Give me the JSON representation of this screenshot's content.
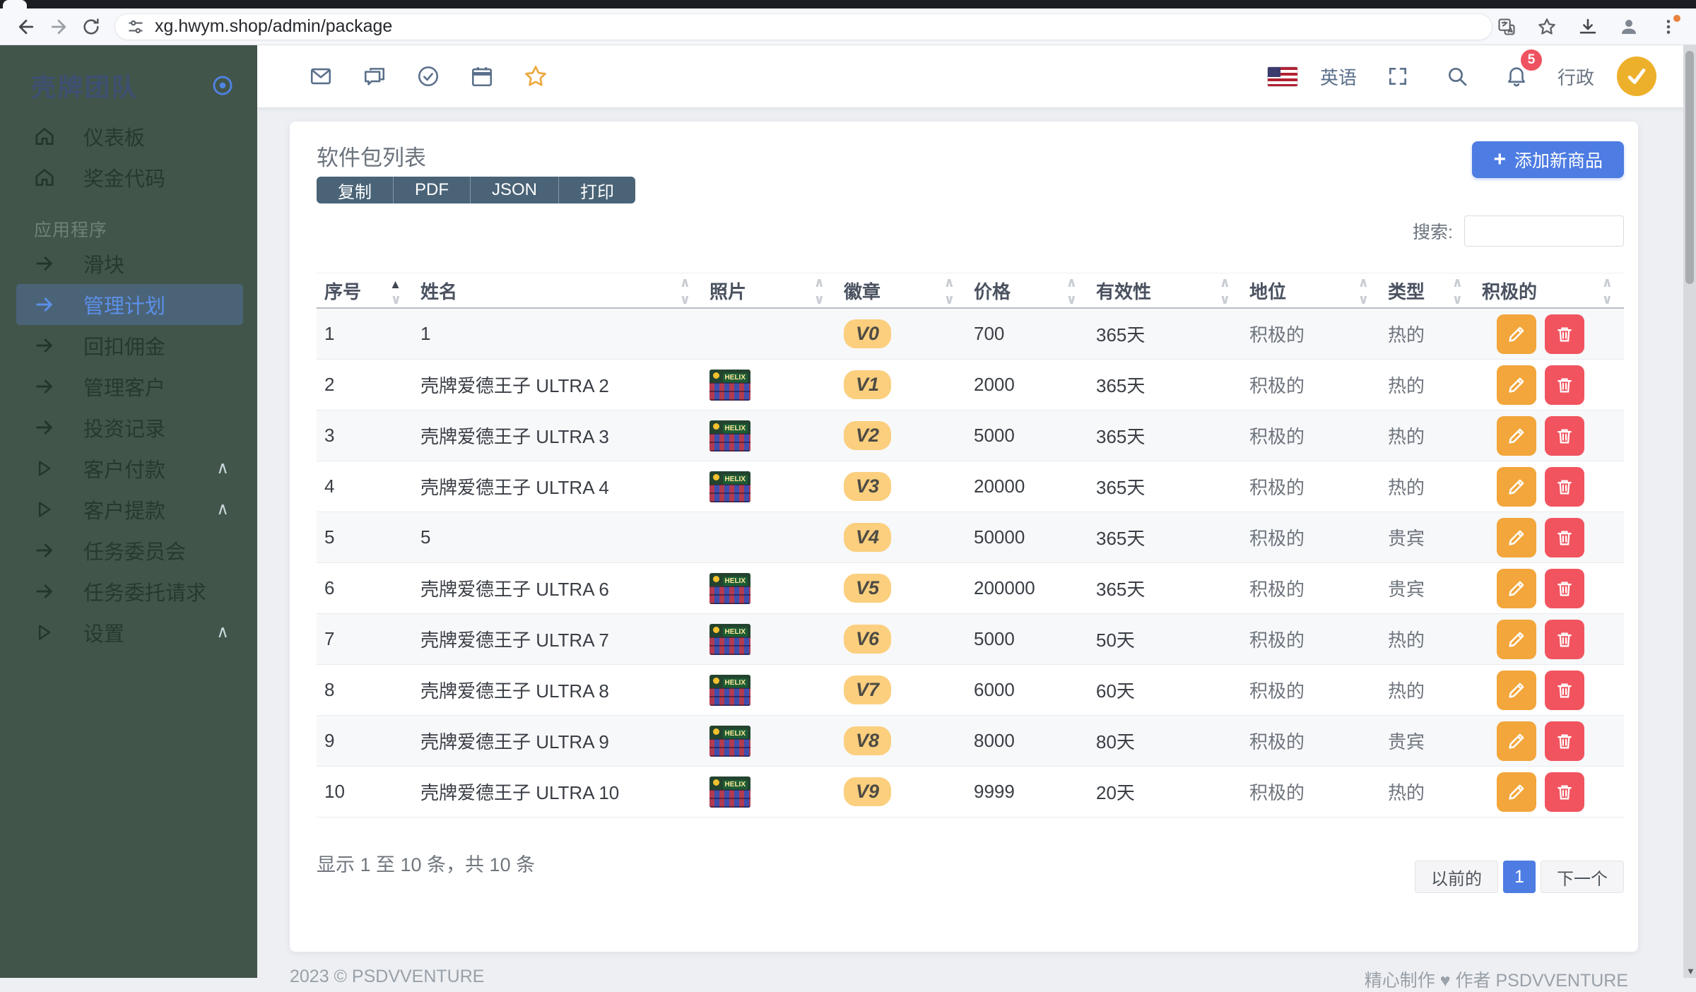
{
  "browser": {
    "url": "xg.hwym.shop/admin/package"
  },
  "sidebar": {
    "brand": "壳牌团队",
    "section_label": "应用程序",
    "items": [
      {
        "label": "仪表板",
        "icon": "home",
        "active": false,
        "chevron": false
      },
      {
        "label": "奖金代码",
        "icon": "home",
        "active": false,
        "chevron": false
      },
      {
        "label": "滑块",
        "icon": "arrow",
        "active": false,
        "chevron": false
      },
      {
        "label": "管理计划",
        "icon": "arrow",
        "active": true,
        "chevron": false
      },
      {
        "label": "回扣佣金",
        "icon": "arrow",
        "active": false,
        "chevron": false
      },
      {
        "label": "管理客户",
        "icon": "arrow",
        "active": false,
        "chevron": false
      },
      {
        "label": "投资记录",
        "icon": "arrow",
        "active": false,
        "chevron": false
      },
      {
        "label": "客户付款",
        "icon": "triangle",
        "active": false,
        "chevron": true
      },
      {
        "label": "客户提款",
        "icon": "triangle",
        "active": false,
        "chevron": true
      },
      {
        "label": "任务委员会",
        "icon": "arrow",
        "active": false,
        "chevron": false
      },
      {
        "label": "任务委托请求",
        "icon": "arrow",
        "active": false,
        "chevron": false
      },
      {
        "label": "设置",
        "icon": "triangle",
        "active": false,
        "chevron": true
      }
    ]
  },
  "topbar": {
    "language": "英语",
    "notification_count": "5",
    "user_role": "行政"
  },
  "page": {
    "title": "软件包列表",
    "export_buttons": [
      "复制",
      "PDF",
      "JSON",
      "打印"
    ],
    "add_button_icon": "+",
    "add_button_label": "添加新商品",
    "search_label": "搜索:",
    "search_value": "",
    "table": {
      "columns": [
        "序号",
        "姓名",
        "照片",
        "徽章",
        "价格",
        "有效性",
        "地位",
        "类型",
        "积极的"
      ],
      "photo_label": "HELIX",
      "rows": [
        {
          "no": "1",
          "name": "1",
          "photo": false,
          "badge": "V0",
          "price": "700",
          "validity": "365天",
          "status": "积极的",
          "type": "热的"
        },
        {
          "no": "2",
          "name": "壳牌爱德王子 ULTRA 2",
          "photo": true,
          "badge": "V1",
          "price": "2000",
          "validity": "365天",
          "status": "积极的",
          "type": "热的"
        },
        {
          "no": "3",
          "name": "壳牌爱德王子 ULTRA 3",
          "photo": true,
          "badge": "V2",
          "price": "5000",
          "validity": "365天",
          "status": "积极的",
          "type": "热的"
        },
        {
          "no": "4",
          "name": "壳牌爱德王子 ULTRA 4",
          "photo": true,
          "badge": "V3",
          "price": "20000",
          "validity": "365天",
          "status": "积极的",
          "type": "热的"
        },
        {
          "no": "5",
          "name": "5",
          "photo": false,
          "badge": "V4",
          "price": "50000",
          "validity": "365天",
          "status": "积极的",
          "type": "贵宾"
        },
        {
          "no": "6",
          "name": "壳牌爱德王子 ULTRA 6",
          "photo": true,
          "badge": "V5",
          "price": "200000",
          "validity": "365天",
          "status": "积极的",
          "type": "贵宾"
        },
        {
          "no": "7",
          "name": "壳牌爱德王子 ULTRA 7",
          "photo": true,
          "badge": "V6",
          "price": "5000",
          "validity": "50天",
          "status": "积极的",
          "type": "热的"
        },
        {
          "no": "8",
          "name": "壳牌爱德王子 ULTRA 8",
          "photo": true,
          "badge": "V7",
          "price": "6000",
          "validity": "60天",
          "status": "积极的",
          "type": "热的"
        },
        {
          "no": "9",
          "name": "壳牌爱德王子 ULTRA 9",
          "photo": true,
          "badge": "V8",
          "price": "8000",
          "validity": "80天",
          "status": "积极的",
          "type": "贵宾"
        },
        {
          "no": "10",
          "name": "壳牌爱德王子 ULTRA 10",
          "photo": true,
          "badge": "V9",
          "price": "9999",
          "validity": "20天",
          "status": "积极的",
          "type": "热的"
        }
      ]
    },
    "summary": "显示 1 至 10 条，共 10 条",
    "pagination": {
      "prev": "以前的",
      "page": "1",
      "next": "下一个"
    }
  },
  "footer": {
    "left": "2023 © PSDVVENTURE",
    "right": "精心制作 ♥ 作者 PSDVVENTURE"
  },
  "colors": {
    "accent_blue": "#4d7ce2",
    "sidebar_bg": "#42554b",
    "active_link_blue": "#5b8fe8",
    "export_slate": "#4a6377",
    "badge_amber": "#fbcf7e",
    "edit_orange": "#f2a63b",
    "delete_red": "#f1545f",
    "notification_red": "#ee5260",
    "star_gold": "#eda93f",
    "avatar_yellow": "#edb02b"
  }
}
